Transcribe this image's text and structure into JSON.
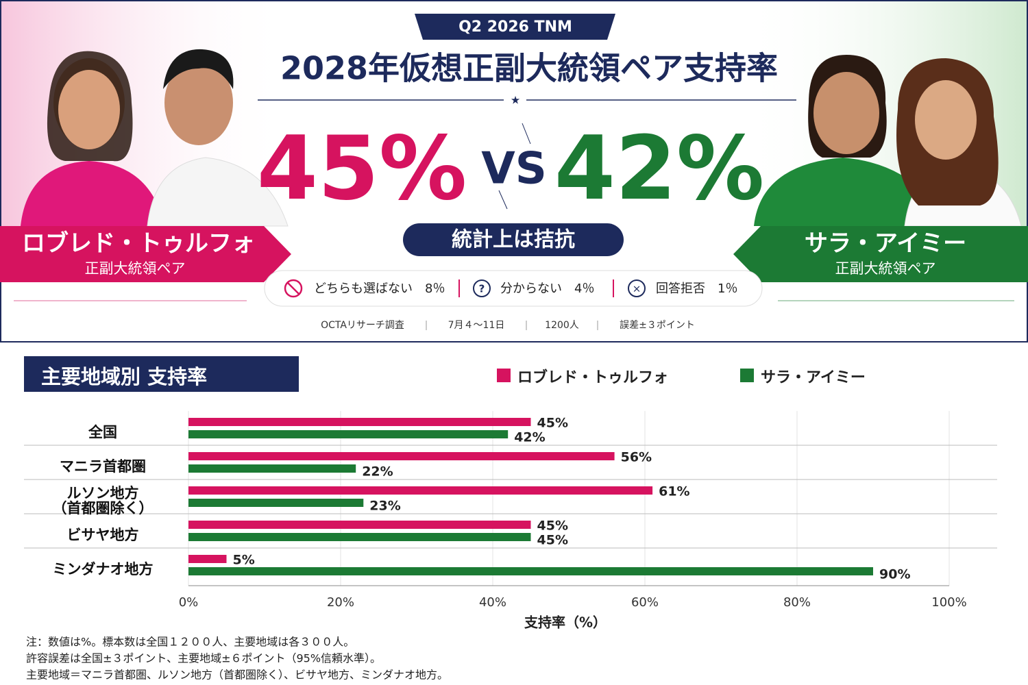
{
  "header": {
    "badge": "Q2 2026 TNM",
    "title": "2028年仮想正副大統領ペア支持率",
    "left": {
      "pct": "45%",
      "sub": "正副大統領ペア"
    },
    "vs": "VS",
    "right": {
      "pct": "42%",
      "sub": "正副大統領ペア"
    },
    "verdict": "統計上は拮抗",
    "options": [
      "どちらも選ばない　8％",
      "分からない　4％",
      "回答拒否　1％"
    ],
    "source": [
      "OCTAリサーチ調査",
      "7月４〜11日",
      "1200人",
      "誤差±３ポイント"
    ]
  },
  "chart_data": {
    "type": "hbar",
    "title": "主要地域別 支持率",
    "categories": [
      "全国",
      "マニラ首都圏",
      "ルソン地方\n（首都圏除く）",
      "ビサヤ地方",
      "ミンダナオ地方"
    ],
    "series": [
      {
        "name": "ロブレド・トゥルフォ",
        "color": "#d6135f",
        "values": [
          45,
          56,
          61,
          45,
          5
        ],
        "value_labels": [
          "45%",
          "56%",
          "61%",
          "45%",
          "5%"
        ]
      },
      {
        "name": "サラ・アイミー",
        "color": "#1c7a34",
        "values": [
          42,
          22,
          23,
          45,
          90
        ],
        "value_labels": [
          "42%",
          "22%",
          "23%",
          "45%",
          "90%"
        ]
      }
    ],
    "xlim": [
      0,
      100
    ],
    "xticks": [
      {
        "value": 0,
        "label": "0%"
      },
      {
        "value": 20,
        "label": "20%"
      },
      {
        "value": 40,
        "label": "40%"
      },
      {
        "value": 60,
        "label": "60%"
      },
      {
        "value": 80,
        "label": "80%"
      },
      {
        "value": 100,
        "label": "100%"
      }
    ],
    "xlabel": "支持率（%）",
    "grid": true
  },
  "notes": [
    "注：数値は%。標本数は全国１２００人、主要地域は各３００人。",
    "許容誤差は全国±３ポイント、主要地域±６ポイント（95%信頼水準）。",
    "主要地域＝マニラ首都圏、ルソン地方（首都圏除く）、ビサヤ地方、ミンダナオ地方。"
  ]
}
